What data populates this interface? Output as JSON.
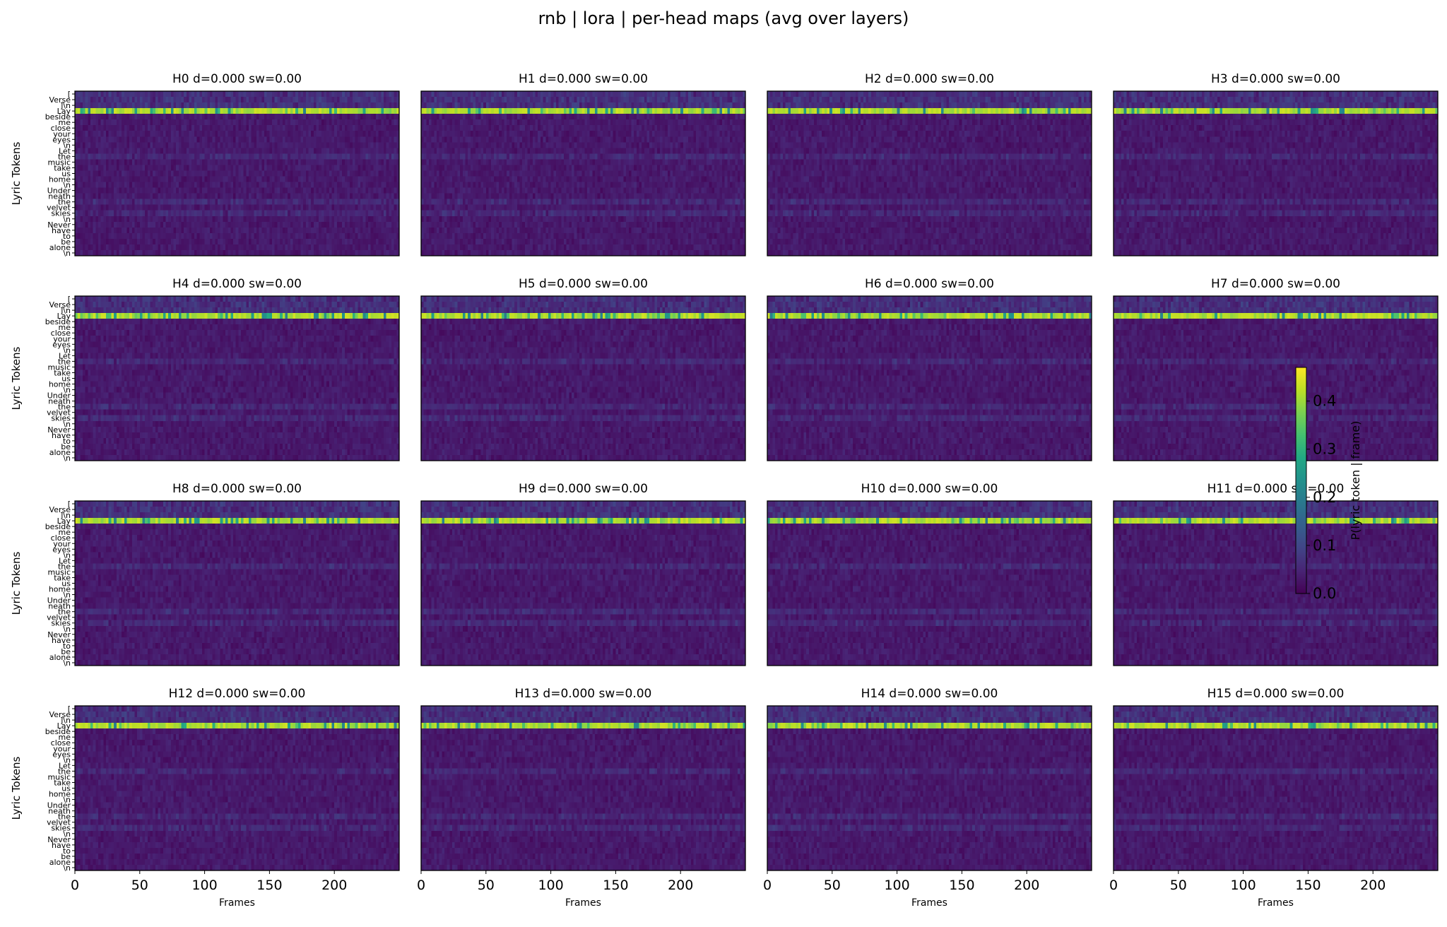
{
  "chart_data": {
    "type": "heatmap",
    "title": "rnb | lora | per-head maps (avg over layers)",
    "layout": {
      "rows": 4,
      "cols": 4
    },
    "ylabel": "Lyric Tokens",
    "xlabel": "Frames",
    "x_range": [
      0,
      250
    ],
    "x_ticks": [
      0,
      50,
      100,
      150,
      200
    ],
    "y_tokens": [
      "[",
      "Verse",
      "]\\n",
      "Lay",
      "beside",
      "me",
      "close",
      "your",
      "eyes",
      "\\n",
      "Let",
      "the",
      "music",
      "take",
      "us",
      "home",
      "\\n",
      "Under",
      "neath",
      "the",
      "velvet",
      "skies",
      "\\n",
      "Never",
      "have",
      "to",
      "be",
      "alone",
      "\\n"
    ],
    "colorbar": {
      "label": "P(lyric token | frame)",
      "range": [
        0.0,
        0.47
      ],
      "ticks": [
        "0.0",
        "0.1",
        "0.2",
        "0.3",
        "0.4"
      ],
      "tick_values": [
        0.0,
        0.1,
        0.2,
        0.3,
        0.4
      ],
      "colormap": "viridis"
    },
    "dominant_token": "Lay",
    "panels": [
      {
        "title": "H0 d=0.000 sw=0.00"
      },
      {
        "title": "H1 d=0.000 sw=0.00"
      },
      {
        "title": "H2 d=0.000 sw=0.00"
      },
      {
        "title": "H3 d=0.000 sw=0.00"
      },
      {
        "title": "H4 d=0.000 sw=0.00"
      },
      {
        "title": "H5 d=0.000 sw=0.00"
      },
      {
        "title": "H6 d=0.000 sw=0.00"
      },
      {
        "title": "H7 d=0.000 sw=0.00"
      },
      {
        "title": "H8 d=0.000 sw=0.00"
      },
      {
        "title": "H9 d=0.000 sw=0.00"
      },
      {
        "title": "H10 d=0.000 sw=0.00"
      },
      {
        "title": "H11 d=0.000 sw=0.00"
      },
      {
        "title": "H12 d=0.000 sw=0.00"
      },
      {
        "title": "H13 d=0.000 sw=0.00"
      },
      {
        "title": "H14 d=0.000 sw=0.00"
      },
      {
        "title": "H15 d=0.000 sw=0.00"
      }
    ]
  }
}
